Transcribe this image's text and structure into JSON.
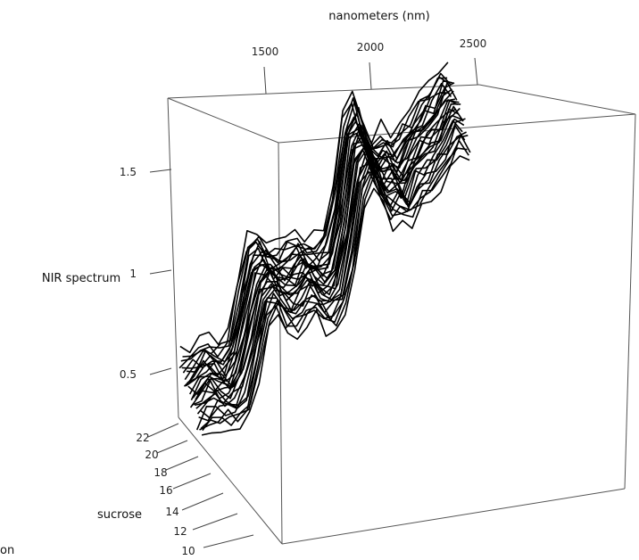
{
  "chart_data": {
    "type": "line",
    "subtype": "3d-perspective-waterfall",
    "x_label": "nanometers (nm)",
    "x_ticks": [
      1500,
      2000,
      2500
    ],
    "y_label": "NIR spectrum",
    "y_ticks": [
      "0.5",
      "1",
      "1.5"
    ],
    "z_label": "sucrose",
    "z_ticks": [
      10,
      12,
      14,
      16,
      18,
      20,
      22
    ],
    "x_range": [
      1100,
      2500
    ],
    "z_range": [
      9.5,
      22.5
    ],
    "y_range": [
      0.2,
      1.85
    ],
    "grid": false,
    "n_spectra": 30,
    "sucrose_levels": [
      10.0,
      10.4,
      10.8,
      11.2,
      11.6,
      12.0,
      12.5,
      12.9,
      13.3,
      13.7,
      14.1,
      14.5,
      15.0,
      15.4,
      15.8,
      16.2,
      16.6,
      17.0,
      17.5,
      17.9,
      18.3,
      18.7,
      19.1,
      19.5,
      20.0,
      20.4,
      20.8,
      21.2,
      21.6,
      22.0
    ],
    "spectrum_nm": [
      1100,
      1150,
      1200,
      1250,
      1300,
      1350,
      1400,
      1450,
      1500,
      1550,
      1600,
      1650,
      1700,
      1750,
      1800,
      1850,
      1900,
      1950,
      2000,
      2050,
      2100,
      2150,
      2200,
      2250,
      2300,
      2350,
      2400,
      2450,
      2500
    ],
    "spectrum_base": [
      0.52,
      0.55,
      0.58,
      0.55,
      0.52,
      0.6,
      0.82,
      1.05,
      1.1,
      1.02,
      0.98,
      1.0,
      1.05,
      0.98,
      0.95,
      1.0,
      1.25,
      1.62,
      1.7,
      1.55,
      1.45,
      1.48,
      1.4,
      1.5,
      1.55,
      1.6,
      1.65,
      1.75,
      1.72
    ]
  },
  "extra_label": "on"
}
